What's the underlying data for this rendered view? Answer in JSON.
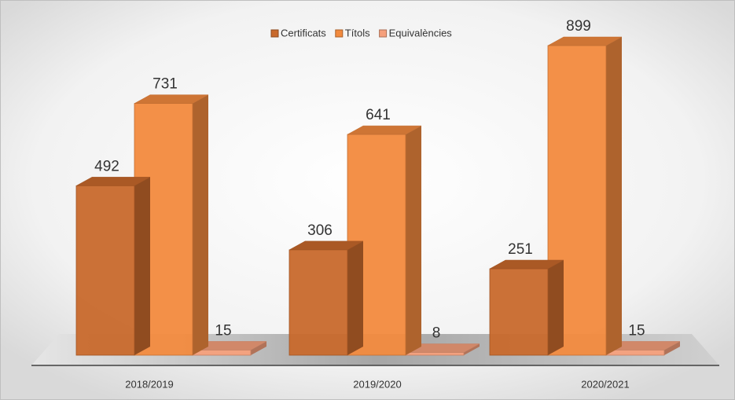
{
  "chart_data": {
    "type": "bar3d",
    "categories": [
      "2018/2019",
      "2019/2020",
      "2020/2021"
    ],
    "series": [
      {
        "name": "Certificats",
        "color": "#c8692c",
        "values": [
          492,
          306,
          251
        ]
      },
      {
        "name": "Títols",
        "color": "#f28a3e",
        "values": [
          731,
          641,
          899
        ]
      },
      {
        "name": "Equivalències",
        "color": "#f6a07c",
        "values": [
          15,
          8,
          15
        ]
      }
    ],
    "legend": "top"
  }
}
